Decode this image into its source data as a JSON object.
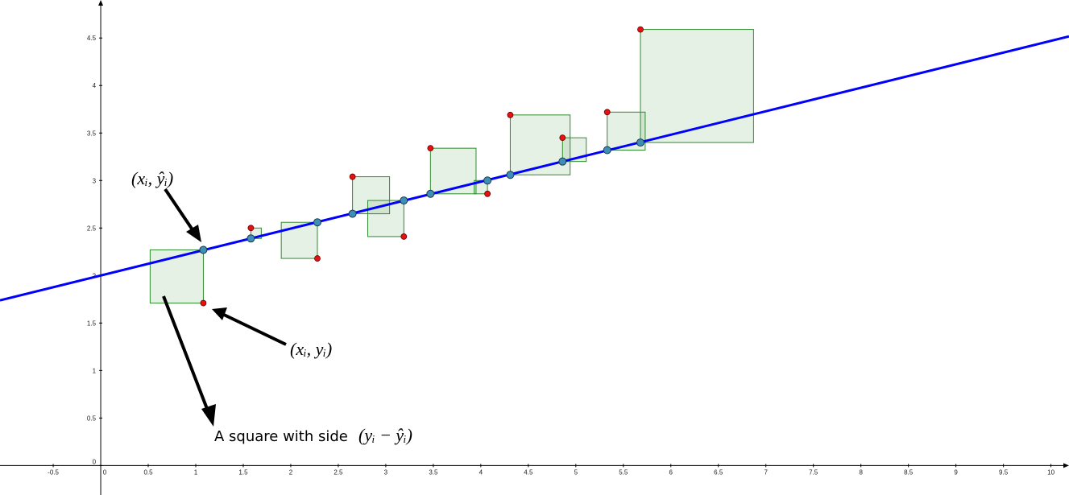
{
  "chart_data": {
    "type": "scatter",
    "x": [
      1.08,
      1.58,
      2.28,
      2.65,
      3.19,
      3.47,
      4.07,
      4.31,
      4.86,
      5.33,
      5.68
    ],
    "y": [
      1.71,
      2.5,
      2.18,
      3.04,
      2.41,
      3.34,
      2.86,
      3.69,
      3.45,
      3.72,
      4.59
    ],
    "y_hat": [
      2.27,
      2.39,
      2.56,
      2.65,
      2.79,
      2.86,
      3.0,
      3.06,
      3.2,
      3.32,
      3.4
    ],
    "square_direction": [
      "left",
      "right",
      "left",
      "right",
      "left",
      "right",
      "left",
      "right",
      "right",
      "right",
      "right"
    ],
    "regression_line": {
      "intercept": 2.0,
      "slope": 0.247,
      "color": "#0000ff"
    },
    "point_color": "#e81010",
    "fitted_color": "#3d8fb8",
    "square_color": "#2e8b2e",
    "xlim": [
      -1.06,
      10.19
    ],
    "ylim": [
      -0.31,
      4.9
    ],
    "xticks": [
      -0.5,
      0,
      0.5,
      1,
      1.5,
      2,
      2.5,
      3,
      3.5,
      4,
      4.5,
      5,
      5.5,
      6,
      6.5,
      7,
      7.5,
      8,
      8.5,
      9,
      9.5,
      10
    ],
    "yticks": [
      0,
      0.5,
      1,
      1.5,
      2,
      2.5,
      3,
      3.5,
      4,
      4.5
    ],
    "annotations": [
      "(xᵢ, ŷᵢ)",
      "(xᵢ, yᵢ)",
      "A square with side",
      "(yᵢ − ŷᵢ)"
    ]
  }
}
